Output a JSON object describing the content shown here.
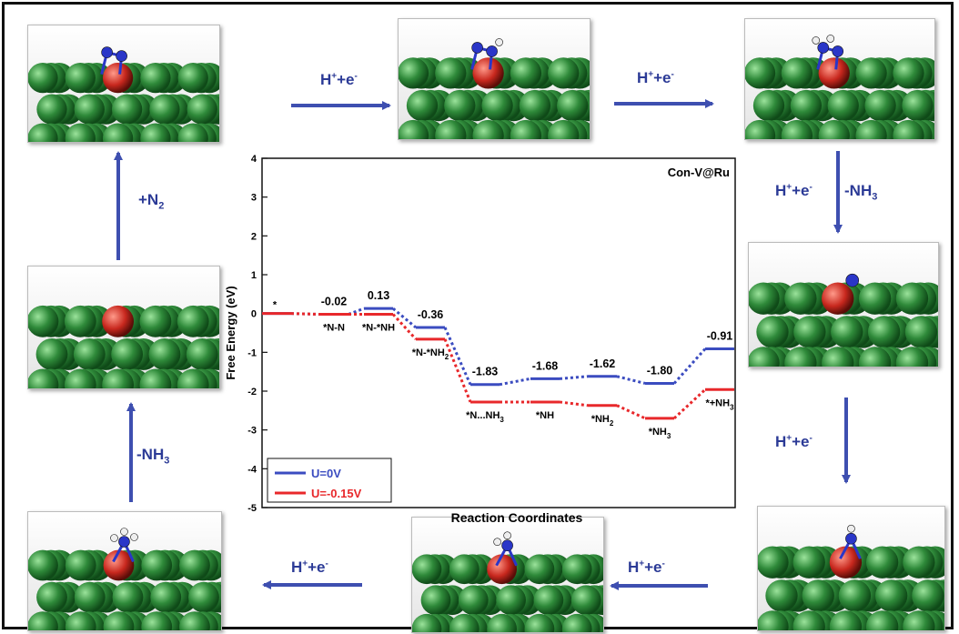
{
  "chart_data": {
    "type": "line",
    "subtype": "free-energy-step-diagram",
    "title": "Con-V@Ru",
    "xlabel": "Reaction Coordinates",
    "ylabel": "Free Energy (eV)",
    "ylim": [
      -5,
      4
    ],
    "yticks": [
      "4",
      "3",
      "2",
      "1",
      "0",
      "-1",
      "-2",
      "-3",
      "-4",
      "-5"
    ],
    "legend_position": "bottom-left",
    "categories": [
      "*",
      "*N-N",
      "*N-*NH",
      "*N-*NH2",
      "*N...NH3",
      "*NH",
      "*NH2",
      "*NH3",
      "*+NH3"
    ],
    "category_labels": [
      {
        "text": "*",
        "sub": ""
      },
      {
        "text": "*N-N",
        "sub": ""
      },
      {
        "text": "*N-*NH",
        "sub": ""
      },
      {
        "text": "*N-*NH",
        "sub": "2"
      },
      {
        "text": "*N...NH",
        "sub": "3"
      },
      {
        "text": "*NH",
        "sub": ""
      },
      {
        "text": "*NH",
        "sub": "2"
      },
      {
        "text": "*NH",
        "sub": "3"
      },
      {
        "text": "*+NH",
        "sub": "3"
      }
    ],
    "series": [
      {
        "name": "U=0V",
        "color": "#3b4cc0",
        "values": [
          0,
          -0.02,
          0.13,
          -0.36,
          -1.83,
          -1.68,
          -1.62,
          -1.8,
          -0.91
        ]
      },
      {
        "name": "U=-0.15V",
        "color": "#e8282b",
        "values": [
          0,
          -0.02,
          -0.02,
          -0.66,
          -2.28,
          -2.28,
          -2.37,
          -2.7,
          -1.96
        ]
      }
    ],
    "data_labels": [
      "-0.02",
      "0.13",
      "-0.36",
      "-1.83",
      "-1.68",
      "-1.62",
      "-1.80",
      "-0.91"
    ]
  },
  "arrows": {
    "top_left": "H+e-",
    "top_right": "H+e-",
    "right_upper": "H+e-",
    "right_upper_product": "-NH",
    "right_lower": "H+e-",
    "bottom_right": "H+e-",
    "bottom_left": "H+e-",
    "left_lower": "-NH",
    "left_upper": "+N"
  },
  "subscripts": {
    "nh3": "3",
    "n2": "2"
  },
  "colors": {
    "arrow": "#3e4fb0",
    "ru_atom": "#2f8a3a",
    "n_atom": "#2a36c8",
    "v_atom": "#c8281e",
    "h_atom": "#eeeeee"
  }
}
